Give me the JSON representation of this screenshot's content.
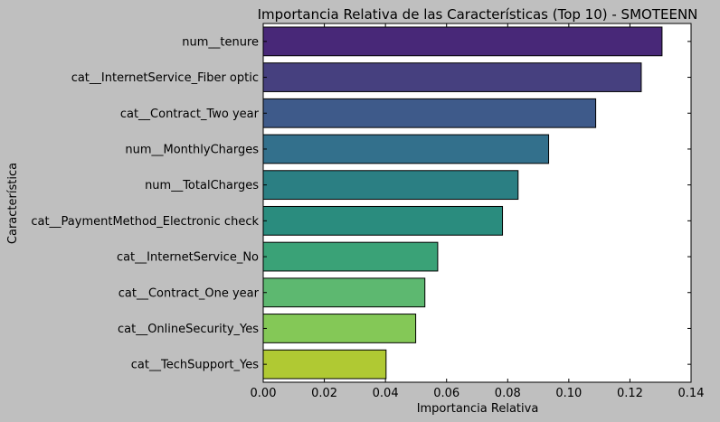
{
  "chart_data": {
    "type": "bar",
    "orientation": "horizontal",
    "title": "Importancia Relativa de las Características (Top 10) - SMOTEENN",
    "xlabel": "Importancia Relativa",
    "ylabel": "Característica",
    "xlim": [
      0.0,
      0.14
    ],
    "xticks": [
      "0.00",
      "0.02",
      "0.04",
      "0.06",
      "0.08",
      "0.10",
      "0.12",
      "0.14"
    ],
    "categories": [
      "num__tenure",
      "cat__InternetService_Fiber optic",
      "cat__Contract_Two year",
      "num__MonthlyCharges",
      "num__TotalCharges",
      "cat__PaymentMethod_Electronic check",
      "cat__InternetService_No",
      "cat__Contract_One year",
      "cat__OnlineSecurity_Yes",
      "cat__TechSupport_Yes"
    ],
    "values": [
      0.1305,
      0.1237,
      0.1088,
      0.0934,
      0.0834,
      0.0783,
      0.0571,
      0.0529,
      0.0499,
      0.0402
    ],
    "colors": [
      "#482878",
      "#46407f",
      "#3e5a8a",
      "#33708c",
      "#2b7f83",
      "#2a8c7e",
      "#3aa277",
      "#5db870",
      "#84c857",
      "#b0c933"
    ],
    "grid": false,
    "legend": "none",
    "background": "#bfbfbf",
    "plot_background": "#ffffff"
  }
}
